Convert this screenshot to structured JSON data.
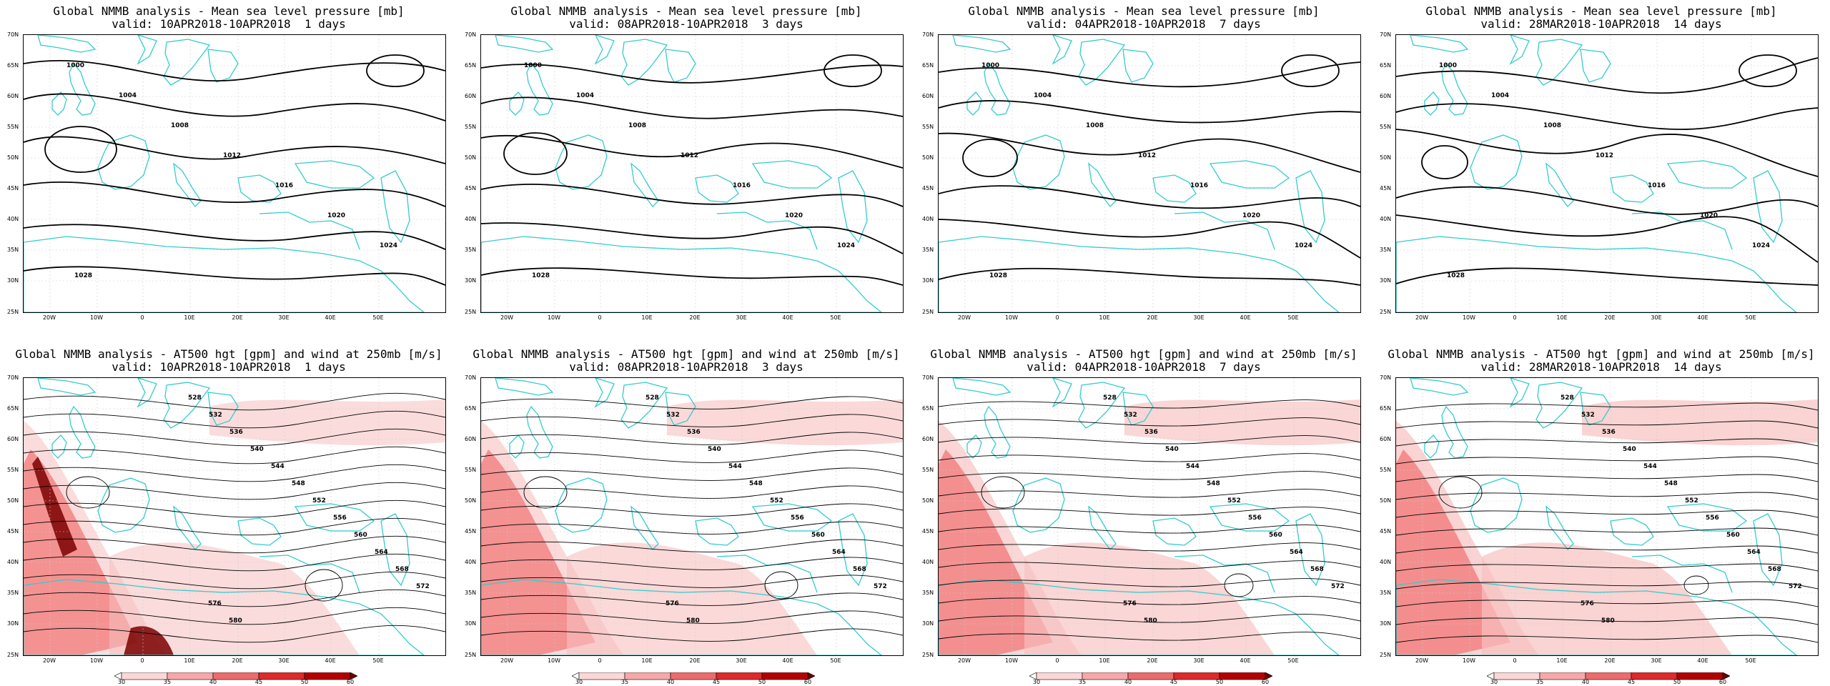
{
  "top_title": "Global NMMB analysis - Mean sea level pressure [mb]",
  "bottom_title": "Global NMMB analysis - AT500 hgt [gpm] and wind at 250mb [m/s]",
  "panels": [
    {
      "valid": "valid: 10APR2018-10APR2018  1 days"
    },
    {
      "valid": "valid: 08APR2018-10APR2018  3 days"
    },
    {
      "valid": "valid: 04APR2018-10APR2018  7 days"
    },
    {
      "valid": "valid: 28MAR2018-10APR2018  14 days"
    }
  ],
  "lat_labels": [
    "70N",
    "65N",
    "60N",
    "55N",
    "50N",
    "45N",
    "40N",
    "35N",
    "30N",
    "25N"
  ],
  "lon_labels": [
    "20W",
    "10W",
    "0",
    "10E",
    "20E",
    "30E",
    "40E",
    "50E"
  ],
  "colorbar_labels": [
    "30",
    "35",
    "40",
    "45",
    "50",
    "60"
  ],
  "colors": {
    "coast": "#33cccc",
    "contour": "#000000",
    "jet_light": "#f8c0c0",
    "jet_mid": "#ee5555",
    "jet_dark": "#7a0000"
  },
  "mslp_labels": [
    "1000",
    "1004",
    "1008",
    "1012",
    "1016",
    "1020",
    "1024",
    "1028"
  ],
  "z500_labels": [
    "528",
    "532",
    "536",
    "540",
    "544",
    "548",
    "552",
    "556",
    "560",
    "564",
    "568",
    "572",
    "576",
    "580"
  ]
}
